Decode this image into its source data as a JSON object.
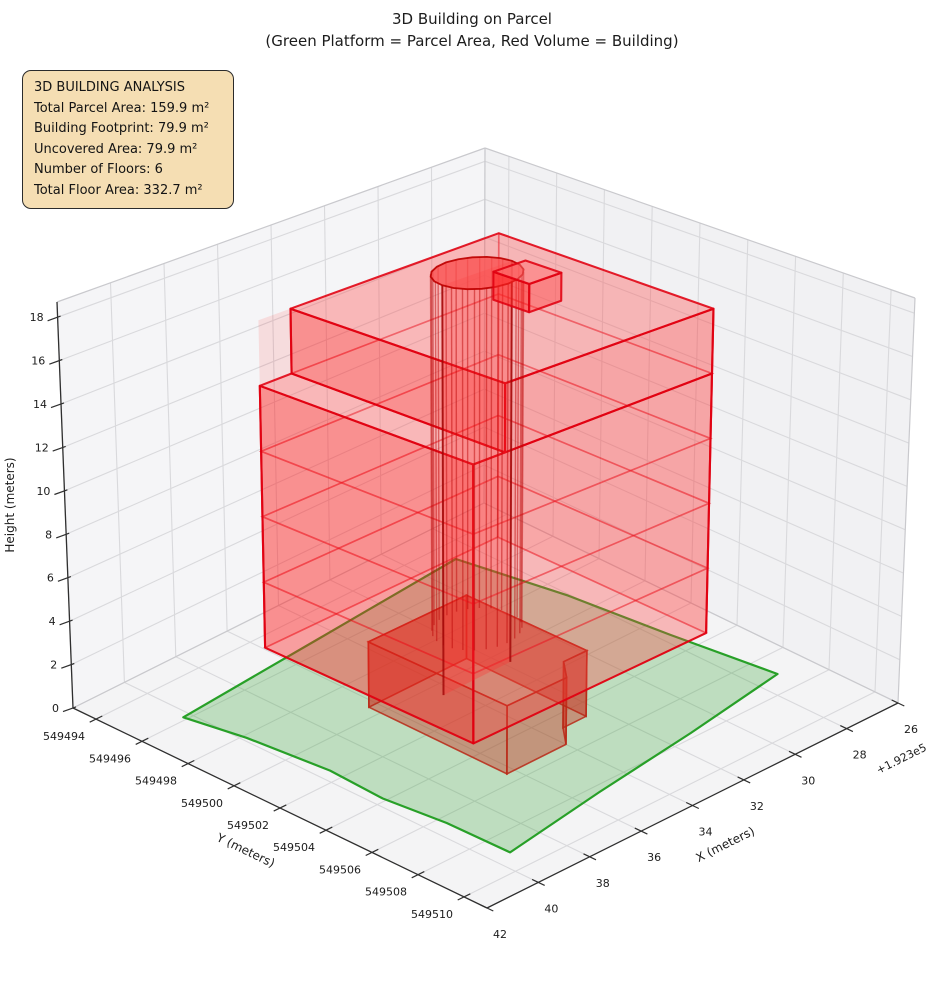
{
  "title": {
    "line1": "3D Building on Parcel",
    "line2": "(Green Platform = Parcel Area, Red Volume = Building)"
  },
  "info_box": {
    "title": "3D BUILDING ANALYSIS",
    "lines": [
      "Total Parcel Area: 159.9 m²",
      "Building Footprint: 79.9 m²",
      "Uncovered Area: 79.9 m²",
      "Number of Floors: 6",
      "Total Floor Area: 332.7 m²"
    ]
  },
  "colors": {
    "info_bg": "#f5deb3",
    "info_border": "#2b2b2b",
    "pane_left": "#f5f5f7",
    "pane_right": "#f1f1f3",
    "pane_floor": "#f4f4f5",
    "grid": "#d9d9dc",
    "pane_edge": "#c9c9cd",
    "spine": "#2f2f2f",
    "tick_text": "#1c1c1c",
    "parcel_fill": "rgba(50,160,50,0.28)",
    "parcel_edge": "#28a028",
    "building_edge": "rgba(224,0,16,0.88)",
    "building_edge_faint": "rgba(224,0,16,0.55)",
    "face_left": "rgba(255,30,30,0.40)",
    "face_right": "rgba(255,60,60,0.33)",
    "face_top": "rgba(255,100,100,0.30)",
    "face_back": "rgba(255,0,0,0.10)",
    "ground_fill": "rgba(200,50,30,0.42)",
    "ground_top": "rgba(210,60,40,0.30)",
    "ground_edge": "rgba(185,40,22,0.85)",
    "core_fill": "rgba(255,45,45,0.30)",
    "core_stripe": "rgba(190,10,10,0.50)",
    "core_silhouette": "rgba(160,5,5,0.80)",
    "core_top_fill": "rgba(250,80,80,0.80)",
    "core_top_edge": "rgba(190,0,0,0.92)"
  },
  "chart_data": {
    "type": "3d_building_model",
    "title": "3D Building on Parcel",
    "subtitle": "(Green Platform = Parcel Area, Red Volume = Building)",
    "stats": {
      "total_parcel_area_m2": 159.9,
      "building_footprint_m2": 79.9,
      "uncovered_area_m2": 79.9,
      "number_of_floors": 6,
      "total_floor_area_m2": 332.7,
      "floor_height_m": 3,
      "building_height_m": 18
    },
    "axes": {
      "x": {
        "label": "X (meters)",
        "offset_text": "+1.923e5",
        "min": 26,
        "max": 42,
        "ticks": [
          26,
          28,
          30,
          32,
          34,
          36,
          38,
          40,
          42
        ]
      },
      "y": {
        "label": "Y (meters)",
        "min": 549493,
        "max": 549511,
        "ticks": [
          549494,
          549496,
          549498,
          549500,
          549502,
          549504,
          549506,
          549508,
          549510
        ]
      },
      "z": {
        "label": "Height (meters)",
        "min": 0,
        "max_display": 18.7,
        "ticks": [
          0,
          2,
          4,
          6,
          8,
          10,
          12,
          14,
          16,
          18
        ]
      }
    },
    "parcel": {
      "area_m2": 159.9,
      "outline": [
        [
          40.3,
          549495.9
        ],
        [
          39.9,
          549498.2
        ],
        [
          39.6,
          549501.5
        ],
        [
          39.7,
          549503.9
        ],
        [
          39.45,
          549506.4
        ],
        [
          39.4,
          549509.1
        ],
        [
          35.3,
          549508.4
        ],
        [
          31.2,
          549507.8
        ],
        [
          27.2,
          549507.1
        ],
        [
          27.7,
          549503.0
        ],
        [
          28.1,
          549499.0
        ],
        [
          28.8,
          549494.9
        ],
        [
          34.5,
          549495.4
        ]
      ]
    },
    "building": {
      "ground_floor": {
        "z": [
          0,
          3
        ],
        "outline": [
          [
            36.3,
            549499.5
          ],
          [
            36.3,
            549505.5
          ],
          [
            34.0,
            549505.5
          ],
          [
            33.4,
            549504.7
          ],
          [
            32.5,
            549504.7
          ],
          [
            32.5,
            549499.5
          ]
        ]
      },
      "main_block": {
        "x": [
          29.5,
          38.5
        ],
        "y": [
          549497.5,
          549506.5
        ],
        "z": [
          3,
          15
        ]
      },
      "top_block": {
        "x": [
          29.5,
          37.3
        ],
        "y": [
          549497.5,
          549506.5
        ],
        "z": [
          15,
          18
        ]
      },
      "core_cylinder": {
        "center": [
          33.35,
          549500.9
        ],
        "radius_m": 1.3,
        "z": [
          0.3,
          19.2
        ]
      },
      "roof_bulkhead": {
        "x": [
          31.9,
          33.1
        ],
        "y": [
          549501.3,
          549502.8
        ],
        "z": [
          18,
          19.3
        ]
      },
      "slab_levels": [
        3,
        6,
        9,
        12,
        15,
        18
      ]
    }
  }
}
